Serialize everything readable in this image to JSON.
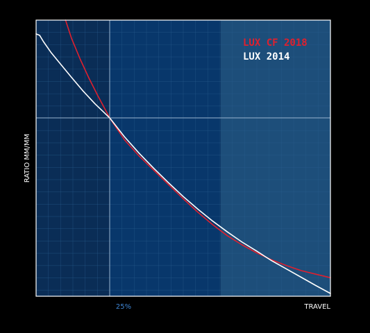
{
  "chart_data": {
    "type": "line",
    "title": "",
    "xlabel": "TRAVEL",
    "ylabel": "RATIO MM/MM",
    "x_tick_labels": [
      {
        "x": 25,
        "label": "25%"
      }
    ],
    "xlim": [
      0,
      100
    ],
    "ylim": [
      0,
      100
    ],
    "grid": true,
    "legend_position": "top-right",
    "colors": {
      "background": "#000000",
      "plot_zone_1": "#0a2d56",
      "plot_zone_2": "#08376b",
      "plot_zone_3": "#1d4e7a",
      "grid": "#2a5e8e",
      "reference_line": "#a8c0d8",
      "tick_label": "#3f86d4",
      "text": "#ffffff"
    },
    "series": [
      {
        "name": "LUX CF 2018",
        "color": "#e0202e",
        "x": [
          10,
          12,
          15,
          18,
          21,
          25,
          30,
          35,
          40,
          45,
          50,
          55,
          60,
          65,
          70,
          75,
          80,
          85,
          90,
          95,
          100
        ],
        "y": [
          100,
          93.5,
          85.8,
          78.9,
          72.6,
          64.6,
          56.7,
          50.8,
          45.6,
          40.4,
          35.3,
          30.4,
          25.9,
          21.9,
          18.6,
          15.7,
          13.2,
          11.1,
          9.3,
          8.0,
          6.7
        ]
      },
      {
        "name": "LUX 2014",
        "color": "#ffffff",
        "x": [
          0,
          1.2,
          2.5,
          5,
          8,
          12,
          16,
          20,
          25,
          30,
          35,
          40,
          45,
          50,
          55,
          60,
          65,
          70,
          75,
          80,
          85,
          90,
          95,
          100
        ],
        "y": [
          95.0,
          94.5,
          92.2,
          88.4,
          84.5,
          79.3,
          74.3,
          69.7,
          64.6,
          57.8,
          51.8,
          46.3,
          41.1,
          36.1,
          31.5,
          27.2,
          23.3,
          19.6,
          16.3,
          12.9,
          9.9,
          6.9,
          3.9,
          1.0
        ]
      }
    ]
  }
}
